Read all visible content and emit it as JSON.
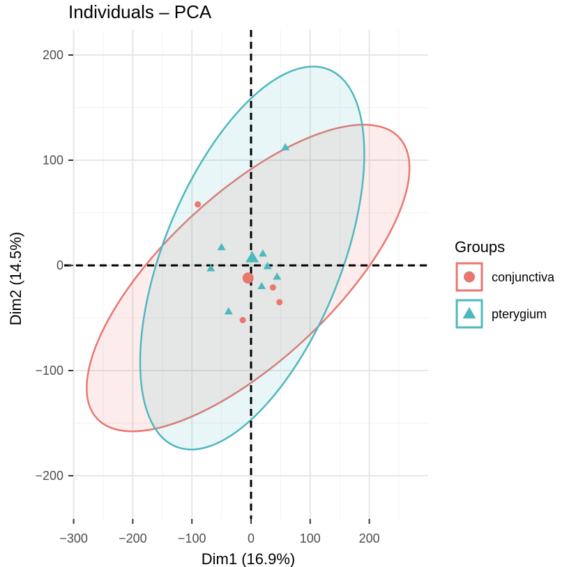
{
  "chart_data": {
    "type": "scatter",
    "title": "Individuals – PCA",
    "xlabel": "Dim1 (16.9%)",
    "ylabel": "Dim2 (14.5%)",
    "xlim": [
      -300,
      300
    ],
    "ylim": [
      -240,
      240
    ],
    "xticks": [
      -300,
      -200,
      -100,
      0,
      100,
      200
    ],
    "yticks": [
      -200,
      -100,
      0,
      100,
      200
    ],
    "tick_labels": {
      "x": [
        "−300",
        "−200",
        "−100",
        "0",
        "100",
        "200"
      ],
      "y": [
        "−200",
        "−100",
        "0",
        "100",
        "200"
      ]
    },
    "grid": true,
    "reference_lines": {
      "x": 0,
      "y": 0,
      "style": "dashed"
    },
    "legend": {
      "title": "Groups",
      "position": "right",
      "entries": [
        {
          "label": "conjunctiva",
          "color": "#E8776F",
          "shape": "circle"
        },
        {
          "label": "pterygium",
          "color": "#4EB8BE",
          "shape": "triangle"
        }
      ]
    },
    "series": [
      {
        "name": "conjunctiva",
        "color": "#E8776F",
        "marker": "circle",
        "points": [
          {
            "x": -90,
            "y": 58
          },
          {
            "x": 37,
            "y": -21
          },
          {
            "x": 48,
            "y": -35
          },
          {
            "x": -14,
            "y": -52
          }
        ],
        "centroid": {
          "x": -5,
          "y": -12
        },
        "ellipse": {
          "cx": -5,
          "cy": -12,
          "rx": 296,
          "ry": 120,
          "rotation_deg": -43
        }
      },
      {
        "name": "pterygium",
        "color": "#4EB8BE",
        "marker": "triangle",
        "points": [
          {
            "x": 58,
            "y": 112
          },
          {
            "x": -50,
            "y": 17
          },
          {
            "x": -68,
            "y": -3
          },
          {
            "x": 20,
            "y": 11
          },
          {
            "x": 28,
            "y": -1
          },
          {
            "x": 44,
            "y": -11
          },
          {
            "x": 18,
            "y": -20
          },
          {
            "x": -38,
            "y": -44
          }
        ],
        "centroid": {
          "x": 2,
          "y": 7
        },
        "ellipse": {
          "cx": 2,
          "cy": 7,
          "rx": 292,
          "ry": 127,
          "rotation_deg": -68
        }
      }
    ]
  }
}
